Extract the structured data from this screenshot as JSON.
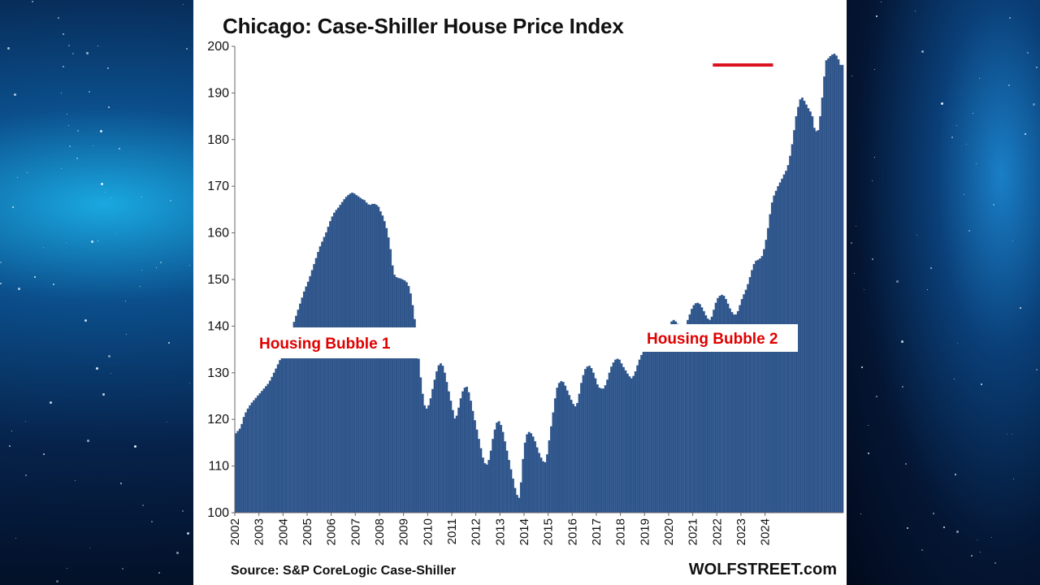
{
  "title": "Chicago: Case-Shiller House Price Index",
  "source": "Source: S&P CoreLogic Case-Shiller",
  "brand": "WOLFSTREET.com",
  "colors": {
    "bar": "#2e5489",
    "bar_edge": "#4a74aa",
    "annotation": "#e00000",
    "highlight_line": "#d9141e"
  },
  "chart_data": {
    "type": "bar",
    "title": "Chicago: Case-Shiller House Price Index",
    "xlabel": "",
    "ylabel": "",
    "ylim": [
      100,
      200
    ],
    "yticks": [
      100,
      110,
      120,
      130,
      140,
      150,
      160,
      170,
      180,
      190,
      200
    ],
    "xticks": [
      "2002",
      "2003",
      "2004",
      "2005",
      "2006",
      "2007",
      "2008",
      "2009",
      "2010",
      "2011",
      "2012",
      "2013",
      "2014",
      "2015",
      "2016",
      "2017",
      "2018",
      "2019",
      "2020",
      "2021",
      "2022",
      "2023",
      "2024"
    ],
    "grid": false,
    "frequency": "monthly",
    "start": "2002-01",
    "end": "2024-04",
    "series": [
      {
        "values": [
          117.0,
          117.5,
          118.0,
          119.0,
          120.5,
          121.5,
          122.3,
          123.0,
          123.6,
          124.1,
          124.6,
          125.1,
          125.6,
          126.1,
          126.6,
          127.1,
          127.6,
          128.3,
          129.1,
          130.0,
          130.9,
          131.8,
          132.7,
          133.5,
          134.4,
          135.7,
          137.0,
          138.3,
          139.6,
          140.9,
          142.2,
          143.5,
          144.8,
          146.1,
          147.4,
          148.5,
          149.5,
          150.7,
          152.0,
          153.3,
          154.6,
          155.9,
          157.1,
          158.1,
          159.1,
          160.1,
          161.3,
          162.5,
          163.5,
          164.3,
          164.9,
          165.4,
          166.0,
          166.6,
          167.2,
          167.7,
          168.1,
          168.4,
          168.6,
          168.4,
          168.1,
          167.8,
          167.5,
          167.2,
          167.0,
          166.5,
          166.1,
          166.0,
          166.2,
          166.2,
          166.0,
          165.6,
          164.6,
          163.7,
          162.5,
          161.0,
          159.0,
          156.5,
          153.0,
          151.0,
          150.5,
          150.3,
          150.2,
          150.0,
          149.8,
          149.4,
          148.6,
          147.0,
          144.5,
          141.5,
          137.5,
          133.0,
          129.0,
          125.5,
          123.0,
          122.3,
          123.0,
          124.5,
          126.5,
          128.5,
          130.3,
          131.6,
          132.0,
          131.5,
          130.0,
          128.0,
          126.0,
          124.0,
          122.0,
          120.2,
          120.8,
          122.5,
          124.5,
          126.0,
          126.8,
          127.0,
          125.8,
          124.0,
          121.8,
          119.8,
          117.8,
          115.8,
          113.8,
          111.8,
          110.6,
          110.3,
          111.3,
          113.3,
          115.8,
          117.8,
          119.3,
          119.6,
          118.8,
          117.3,
          115.3,
          113.3,
          111.3,
          109.3,
          107.3,
          105.3,
          103.8,
          103.2,
          106.5,
          111.5,
          115.0,
          116.8,
          117.3,
          117.0,
          116.3,
          115.3,
          114.0,
          112.8,
          111.8,
          111.0,
          110.8,
          112.5,
          115.5,
          118.5,
          121.5,
          124.5,
          126.8,
          127.8,
          128.2,
          128.0,
          127.2,
          126.2,
          125.2,
          124.2,
          123.3,
          122.8,
          123.5,
          125.5,
          127.8,
          129.5,
          130.8,
          131.3,
          131.5,
          131.0,
          130.0,
          128.8,
          127.5,
          126.8,
          126.6,
          126.6,
          127.3,
          128.5,
          130.0,
          131.3,
          132.2,
          132.8,
          133.0,
          132.8,
          132.0,
          131.2,
          130.5,
          129.8,
          129.2,
          128.8,
          129.3,
          130.3,
          131.6,
          132.8,
          133.8,
          134.6,
          135.2,
          135.5,
          135.6,
          135.4,
          135.0,
          134.8,
          134.7,
          135.2,
          136.2,
          137.3,
          138.3,
          139.3,
          140.3,
          141.0,
          141.3,
          141.0,
          140.5,
          140.0,
          139.8,
          139.8,
          140.3,
          141.3,
          142.5,
          143.7,
          144.5,
          144.9,
          145.0,
          144.7,
          144.0,
          143.2,
          142.3,
          141.6,
          141.3,
          142.0,
          143.5,
          145.0,
          146.0,
          146.5,
          146.7,
          146.5,
          145.8,
          144.8,
          143.8,
          143.0,
          142.5,
          142.5,
          143.2,
          144.5,
          145.8,
          146.8,
          147.8,
          149.0,
          150.5,
          152.0,
          153.3,
          154.0,
          154.2,
          154.5,
          155.0,
          156.5,
          158.5,
          161.0,
          164.0,
          166.5,
          168.0,
          169.0,
          170.0,
          170.8,
          171.6,
          172.5,
          173.3,
          174.5,
          176.5,
          179.0,
          182.0,
          185.0,
          187.0,
          188.6,
          189.0,
          188.3,
          187.5,
          186.7,
          186.0,
          185.0,
          182.5,
          181.8,
          182.0,
          185.0,
          189.0,
          193.5,
          197.0,
          197.4,
          197.9,
          198.2,
          198.4,
          198.0,
          197.2,
          196.0,
          196.0
        ]
      }
    ],
    "annotations": [
      {
        "text": "Housing Bubble 1"
      },
      {
        "text": "Housing Bubble 2"
      }
    ],
    "reference_line": {
      "value": 196.0,
      "start": "2021-11",
      "end": "2024-04"
    }
  }
}
